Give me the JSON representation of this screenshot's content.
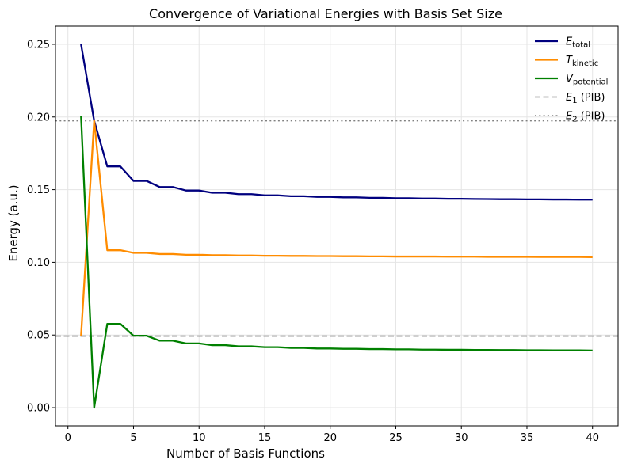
{
  "chart_data": {
    "type": "line",
    "title": "Convergence of Variational Energies with Basis Set Size",
    "xlabel": "Number of Basis Functions",
    "ylabel": "Energy (a.u.)",
    "xlim": [
      -0.95,
      41.95
    ],
    "ylim": [
      -0.0125,
      0.2625
    ],
    "xticks": [
      0,
      5,
      10,
      15,
      20,
      25,
      30,
      35,
      40
    ],
    "yticks": [
      0.0,
      0.05,
      0.1,
      0.15,
      0.2,
      0.25
    ],
    "ytick_labels": [
      "0.00",
      "0.05",
      "0.10",
      "0.15",
      "0.20",
      "0.25"
    ],
    "grid": true,
    "legend_position": "top-right",
    "x": [
      1,
      2,
      3,
      4,
      5,
      6,
      7,
      8,
      9,
      10,
      11,
      12,
      13,
      14,
      15,
      16,
      17,
      18,
      19,
      20,
      21,
      22,
      23,
      24,
      25,
      26,
      27,
      28,
      29,
      30,
      31,
      32,
      33,
      34,
      35,
      36,
      37,
      38,
      39,
      40
    ],
    "series": [
      {
        "name": "E_total",
        "legend_main": "E",
        "legend_sub": "total",
        "color": "#00007f",
        "style": "solid",
        "values": [
          0.25,
          0.1974,
          0.166,
          0.166,
          0.156,
          0.156,
          0.1518,
          0.1518,
          0.1494,
          0.1494,
          0.1479,
          0.1479,
          0.1469,
          0.1469,
          0.1461,
          0.1461,
          0.1455,
          0.1455,
          0.145,
          0.145,
          0.1447,
          0.1447,
          0.1444,
          0.1444,
          0.1441,
          0.1441,
          0.1439,
          0.1439,
          0.1437,
          0.1437,
          0.1436,
          0.1435,
          0.1434,
          0.1434,
          0.1433,
          0.1433,
          0.1432,
          0.1432,
          0.1431,
          0.1431
        ]
      },
      {
        "name": "T_kinetic",
        "legend_main": "T",
        "legend_sub": "kinetic",
        "color": "#ff8c00",
        "style": "solid",
        "values": [
          0.0493,
          0.1974,
          0.1083,
          0.1083,
          0.1065,
          0.1065,
          0.1057,
          0.1057,
          0.1052,
          0.1052,
          0.1049,
          0.1049,
          0.1047,
          0.1047,
          0.1045,
          0.1045,
          0.1044,
          0.1044,
          0.1043,
          0.1043,
          0.1042,
          0.1042,
          0.1041,
          0.1041,
          0.104,
          0.104,
          0.104,
          0.104,
          0.1039,
          0.1039,
          0.1039,
          0.1038,
          0.1038,
          0.1038,
          0.1038,
          0.1037,
          0.1037,
          0.1037,
          0.1037,
          0.1036
        ]
      },
      {
        "name": "V_potential",
        "legend_main": "V",
        "legend_sub": "potential",
        "color": "#008000",
        "style": "solid",
        "values": [
          0.2007,
          0.0,
          0.0577,
          0.0577,
          0.0495,
          0.0495,
          0.0461,
          0.0461,
          0.0442,
          0.0442,
          0.043,
          0.043,
          0.0422,
          0.0422,
          0.0416,
          0.0416,
          0.0411,
          0.0411,
          0.0407,
          0.0407,
          0.0405,
          0.0405,
          0.0403,
          0.0403,
          0.0401,
          0.0401,
          0.0399,
          0.0399,
          0.0398,
          0.0398,
          0.0397,
          0.0397,
          0.0396,
          0.0396,
          0.0395,
          0.0395,
          0.0394,
          0.0394,
          0.0394,
          0.0393
        ]
      }
    ],
    "reference_lines": [
      {
        "name": "E_1 (PIB)",
        "legend_main": "E",
        "legend_sub": "1",
        "legend_suffix": " (PIB)",
        "y": 0.0493,
        "color": "#808080",
        "style": "dashed"
      },
      {
        "name": "E_2 (PIB)",
        "legend_main": "E",
        "legend_sub": "2",
        "legend_suffix": " (PIB)",
        "y": 0.1974,
        "color": "#808080",
        "style": "dotted"
      }
    ]
  }
}
